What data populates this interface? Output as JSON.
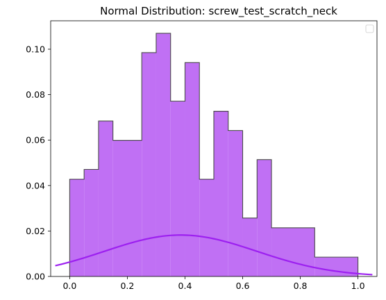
{
  "chart_data": {
    "type": "histogram",
    "title": "Normal Distribution: screw_test_scratch_neck",
    "xlabel": "",
    "ylabel": "",
    "xlim": [
      -0.066,
      1.066
    ],
    "ylim": [
      0,
      0.1125
    ],
    "x_ticks": [
      "0.0",
      "0.2",
      "0.4",
      "0.6",
      "0.8",
      "1.0"
    ],
    "x_tick_values": [
      0.0,
      0.2,
      0.4,
      0.6,
      0.8,
      1.0
    ],
    "y_ticks": [
      "0.00",
      "0.02",
      "0.04",
      "0.06",
      "0.08",
      "0.10"
    ],
    "y_tick_values": [
      0.0,
      0.02,
      0.04,
      0.06,
      0.08,
      0.1
    ],
    "bins": [
      {
        "x0": 0.0,
        "x1": 0.05,
        "density": 0.0428
      },
      {
        "x0": 0.05,
        "x1": 0.1,
        "density": 0.0471
      },
      {
        "x0": 0.1,
        "x1": 0.15,
        "density": 0.0684
      },
      {
        "x0": 0.15,
        "x1": 0.25,
        "density": 0.0599
      },
      {
        "x0": 0.25,
        "x1": 0.3,
        "density": 0.0985
      },
      {
        "x0": 0.3,
        "x1": 0.35,
        "density": 0.107
      },
      {
        "x0": 0.35,
        "x1": 0.4,
        "density": 0.0771
      },
      {
        "x0": 0.4,
        "x1": 0.45,
        "density": 0.0941
      },
      {
        "x0": 0.45,
        "x1": 0.5,
        "density": 0.0428
      },
      {
        "x0": 0.5,
        "x1": 0.55,
        "density": 0.0727
      },
      {
        "x0": 0.55,
        "x1": 0.6,
        "density": 0.0642
      },
      {
        "x0": 0.6,
        "x1": 0.65,
        "density": 0.0257
      },
      {
        "x0": 0.65,
        "x1": 0.7,
        "density": 0.0514
      },
      {
        "x0": 0.7,
        "x1": 0.85,
        "density": 0.0214
      },
      {
        "x0": 0.85,
        "x1": 1.0,
        "density": 0.0085
      }
    ],
    "curve": {
      "type": "normal-pdf",
      "mean": 0.385,
      "std": 0.265,
      "scale": 0.0121,
      "x_range": [
        -0.05,
        1.05
      ]
    },
    "colors": {
      "fill": "#c070f4",
      "edge": "#4a4a4a",
      "curve": "#9c1ff0"
    },
    "legend": {
      "position": "top-right",
      "entries": []
    },
    "grid": false
  }
}
